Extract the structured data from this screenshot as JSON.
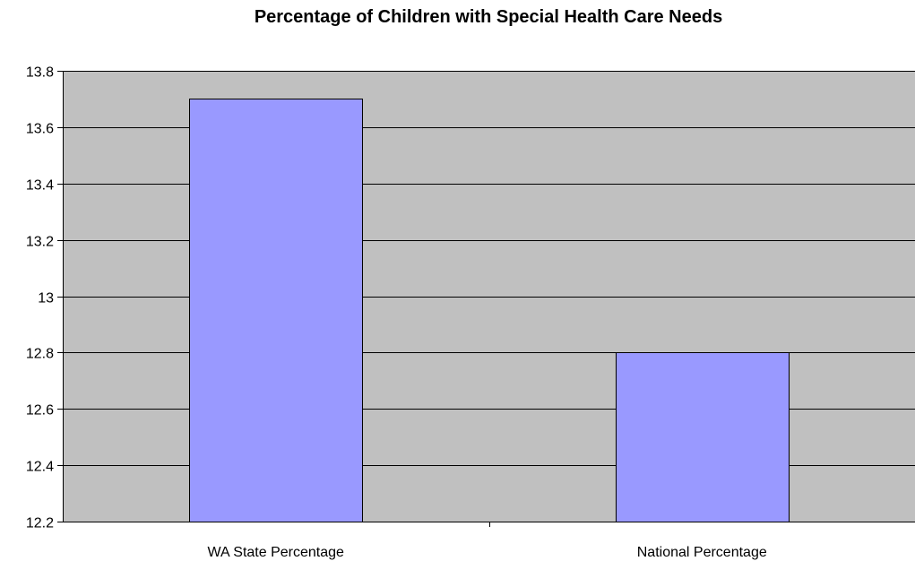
{
  "chart_data": {
    "type": "bar",
    "title": "Percentage of Children with Special Health Care Needs",
    "xlabel": "",
    "ylabel": "",
    "categories": [
      "WA State Percentage",
      "National Percentage"
    ],
    "values": [
      13.7,
      12.8
    ],
    "ylim": [
      12.2,
      13.8
    ],
    "yticks": [
      "12.2",
      "12.4",
      "12.6",
      "12.8",
      "13",
      "13.2",
      "13.4",
      "13.6",
      "13.8"
    ],
    "grid": true,
    "legend": "none",
    "colors": {
      "bar_fill": "#9999ff",
      "plot_background": "#c0c0c0",
      "bar_stroke": "#000000",
      "gridline": "#000000"
    }
  }
}
